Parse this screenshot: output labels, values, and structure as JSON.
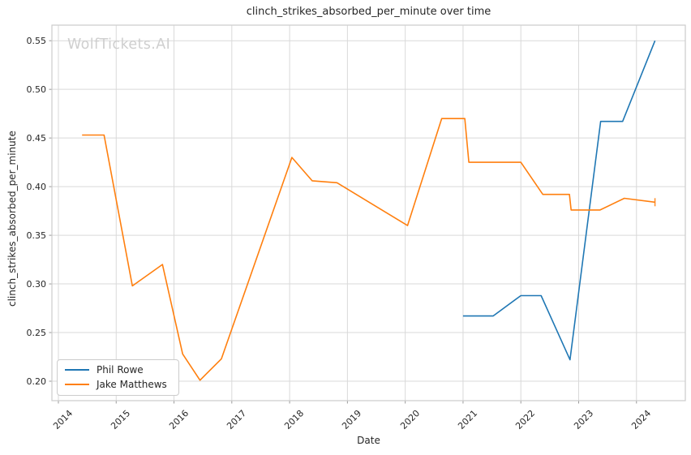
{
  "watermark": {
    "text": "WolfTickets.AI"
  },
  "chart_data": {
    "type": "line",
    "title": "clinch_strikes_absorbed_per_minute over time",
    "xlabel": "Date",
    "ylabel": "clinch_strikes_absorbed_per_minute",
    "grid": true,
    "legend_position": "lower left",
    "xlim": [
      2013.888,
      2024.845
    ],
    "ylim": [
      0.18,
      0.566
    ],
    "x_ticks": [
      {
        "value": 2014,
        "label": "2014"
      },
      {
        "value": 2015,
        "label": "2015"
      },
      {
        "value": 2016,
        "label": "2016"
      },
      {
        "value": 2017,
        "label": "2017"
      },
      {
        "value": 2018,
        "label": "2018"
      },
      {
        "value": 2019,
        "label": "2019"
      },
      {
        "value": 2020,
        "label": "2020"
      },
      {
        "value": 2021,
        "label": "2021"
      },
      {
        "value": 2022,
        "label": "2022"
      },
      {
        "value": 2023,
        "label": "2023"
      },
      {
        "value": 2024,
        "label": "2024"
      }
    ],
    "y_ticks": [
      {
        "value": 0.2,
        "label": "0.20"
      },
      {
        "value": 0.25,
        "label": "0.25"
      },
      {
        "value": 0.3,
        "label": "0.30"
      },
      {
        "value": 0.35,
        "label": "0.35"
      },
      {
        "value": 0.4,
        "label": "0.40"
      },
      {
        "value": 0.45,
        "label": "0.45"
      },
      {
        "value": 0.5,
        "label": "0.50"
      },
      {
        "value": 0.55,
        "label": "0.55"
      }
    ],
    "series": [
      {
        "name": "Phil Rowe",
        "color": "#1f77b4",
        "end_cap": false,
        "points": [
          [
            2021.0,
            0.267
          ],
          [
            2021.52,
            0.267
          ],
          [
            2022.0,
            0.288
          ],
          [
            2022.35,
            0.288
          ],
          [
            2022.85,
            0.222
          ],
          [
            2023.38,
            0.467
          ],
          [
            2023.76,
            0.467
          ],
          [
            2024.32,
            0.55
          ]
        ]
      },
      {
        "name": "Jake Matthews",
        "color": "#ff7f0e",
        "end_cap": true,
        "points": [
          [
            2014.41,
            0.453
          ],
          [
            2014.79,
            0.453
          ],
          [
            2015.28,
            0.298
          ],
          [
            2015.8,
            0.32
          ],
          [
            2016.15,
            0.228
          ],
          [
            2016.45,
            0.201
          ],
          [
            2016.82,
            0.223
          ],
          [
            2018.04,
            0.43
          ],
          [
            2018.39,
            0.406
          ],
          [
            2018.82,
            0.404
          ],
          [
            2020.04,
            0.36
          ],
          [
            2020.63,
            0.47
          ],
          [
            2021.03,
            0.47
          ],
          [
            2021.1,
            0.425
          ],
          [
            2022.0,
            0.425
          ],
          [
            2022.38,
            0.392
          ],
          [
            2022.84,
            0.392
          ],
          [
            2022.87,
            0.376
          ],
          [
            2023.37,
            0.376
          ],
          [
            2023.79,
            0.388
          ],
          [
            2024.32,
            0.384
          ]
        ]
      }
    ],
    "colors": {
      "grid": "#d9d9d9",
      "spine": "#cccccc",
      "tick": "#999999",
      "text": "#262626",
      "watermark": "#cfcfcf"
    }
  }
}
